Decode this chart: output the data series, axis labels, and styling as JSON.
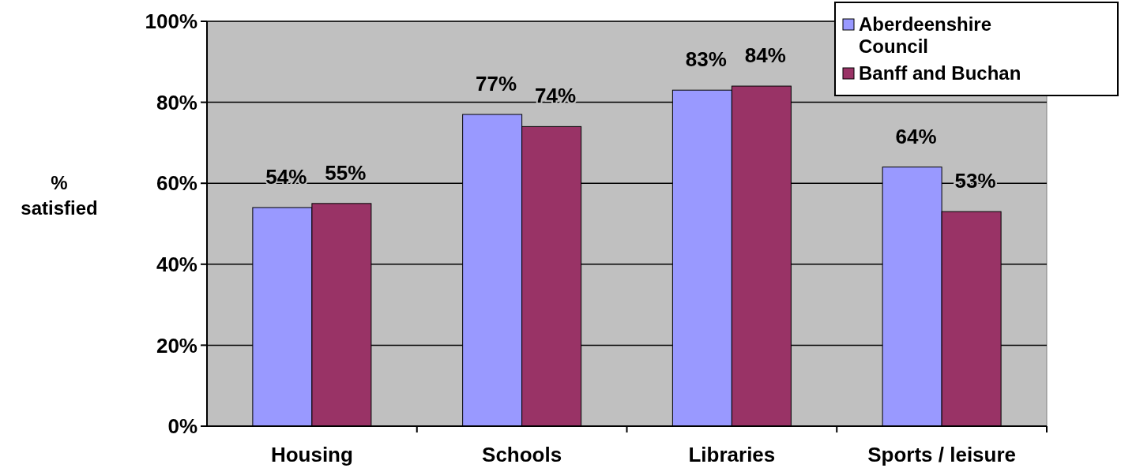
{
  "chart_data": {
    "type": "bar",
    "ylabel": "% satisfied",
    "categories": [
      "Housing",
      "Schools",
      "Libraries",
      "Sports / leisure"
    ],
    "series": [
      {
        "name": "Aberdeenshire Council",
        "color": "#9999ff",
        "values": [
          54,
          77,
          83,
          64
        ],
        "value_labels": [
          "54%",
          "77%",
          "83%",
          "64%"
        ]
      },
      {
        "name": "Banff and Buchan",
        "color": "#993366",
        "values": [
          55,
          74,
          84,
          53
        ],
        "value_labels": [
          "55%",
          "74%",
          "84%",
          "53%"
        ]
      }
    ],
    "ylim": [
      0,
      100
    ],
    "yticks": [
      {
        "value": 0,
        "label": "0%"
      },
      {
        "value": 20,
        "label": "20%"
      },
      {
        "value": 40,
        "label": "40%"
      },
      {
        "value": 60,
        "label": "60%"
      },
      {
        "value": 80,
        "label": "80%"
      },
      {
        "value": 100,
        "label": "100%"
      }
    ],
    "grid": "y",
    "legend": "top right"
  }
}
